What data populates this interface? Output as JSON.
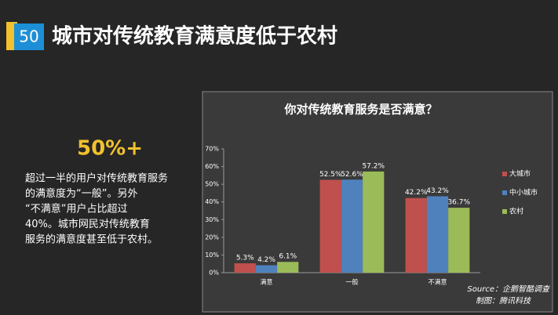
{
  "slide_number": "50",
  "title": "城市对传统教育满意度低于农村",
  "highlight": "50%+",
  "body_lines": [
    "超过一半的用户对传统教育服务",
    "的满意度为“一般”。另外",
    "“不满意”用户占比超过",
    "40%。城市网民对传统教育",
    "服务的满意度甚至低于农村。"
  ],
  "chart_data": {
    "type": "bar",
    "title": "你对传统教育服务是否满意？",
    "categories": [
      "满意",
      "一般",
      "不满意"
    ],
    "series": [
      {
        "name": "大城市",
        "color": "#c0504d",
        "values": [
          5.3,
          52.5,
          42.2
        ],
        "value_labels": [
          "5.3%",
          "52.5%",
          "42.2%"
        ]
      },
      {
        "name": "中小城市",
        "color": "#4f81bd",
        "values": [
          4.2,
          52.6,
          43.2
        ],
        "value_labels": [
          "4.2%",
          "52.6%",
          "43.2%"
        ]
      },
      {
        "name": "农村",
        "color": "#9bbb59",
        "values": [
          6.1,
          57.2,
          36.7
        ],
        "value_labels": [
          "6.1%",
          "57.2%",
          "36.7%"
        ]
      }
    ],
    "ylim": [
      0,
      70
    ],
    "yticks": [
      {
        "value": 0,
        "label": "0%"
      },
      {
        "value": 10,
        "label": "10%"
      },
      {
        "value": 20,
        "label": "20%"
      },
      {
        "value": 30,
        "label": "30%"
      },
      {
        "value": 40,
        "label": "40%"
      },
      {
        "value": 50,
        "label": "50%"
      },
      {
        "value": 60,
        "label": "60%"
      },
      {
        "value": 70,
        "label": "70%"
      }
    ],
    "grid": false,
    "legend": "right",
    "source": "Source：企鹅智酷调查",
    "credit": "制图：腾讯科技"
  }
}
